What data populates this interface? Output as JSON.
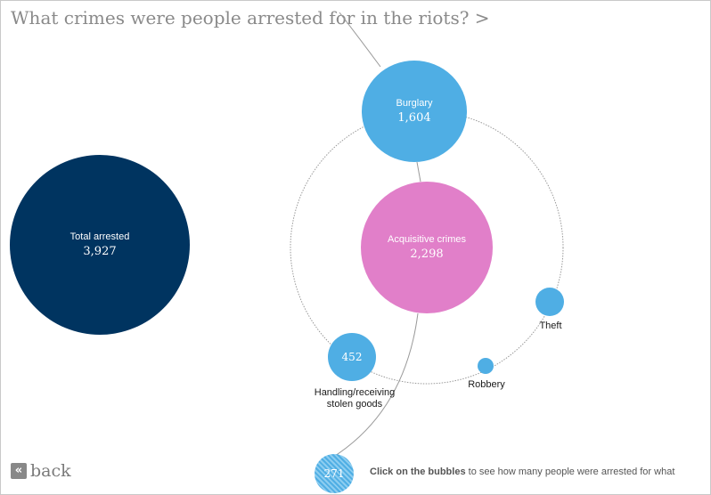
{
  "header": {
    "title": "What crimes were people arrested for in the riots? >"
  },
  "bubbles": {
    "total": {
      "label": "Total arrested",
      "value": "3,927",
      "color": "#003460"
    },
    "acquisitive": {
      "label": "Acquisitive crimes",
      "value": "2,298",
      "color": "#e17fc9"
    },
    "burglary": {
      "label": "Burglary",
      "value": "1,604",
      "color": "#4faee4"
    },
    "handling": {
      "label": "Handling/receiving stolen goods",
      "value": "452",
      "color": "#4faee4"
    },
    "theft": {
      "label": "Theft",
      "color": "#4faee4"
    },
    "robbery": {
      "label": "Robbery",
      "color": "#4faee4"
    },
    "unlabeled": {
      "value": "271",
      "color": "#4faee4"
    }
  },
  "footer": {
    "back_label": "back",
    "back_icon": "double-chevron-left-icon",
    "hint_bold": "Click on the bubbles",
    "hint_rest": " to see how many people were arrested for what"
  }
}
